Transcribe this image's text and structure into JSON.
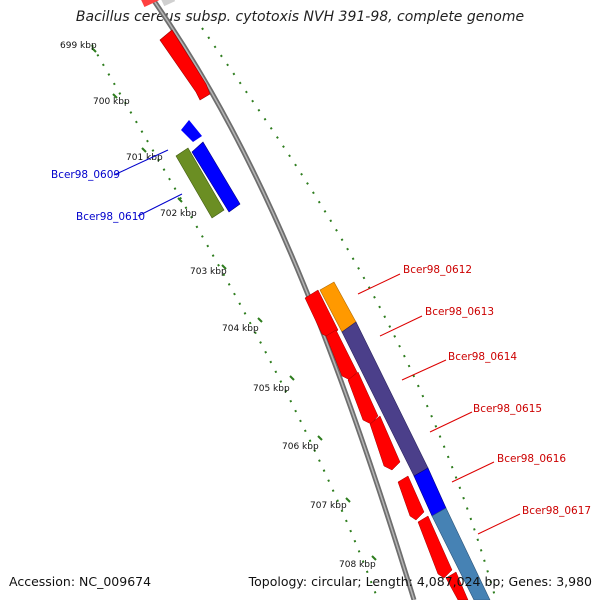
{
  "title": "Bacillus cereus subsp. cytotoxis NVH 391-98, complete genome",
  "footer": {
    "accession": "Accession: NC_009674",
    "summary": "Topology: circular; Length: 4,087,024 bp; Genes: 3,980"
  },
  "ticks": [
    "699 kbp",
    "700 kbp",
    "701 kbp",
    "702 kbp",
    "703 kbp",
    "704 kbp",
    "705 kbp",
    "706 kbp",
    "707 kbp",
    "708 kbp"
  ],
  "genes_left": [
    {
      "label": "Bcer98_0609",
      "color": "#0000cc"
    },
    {
      "label": "Bcer98_0610",
      "color": "#0000cc"
    }
  ],
  "genes_right": [
    {
      "label": "Bcer98_0612",
      "color": "#cc0000"
    },
    {
      "label": "Bcer98_0613",
      "color": "#cc0000"
    },
    {
      "label": "Bcer98_0614",
      "color": "#cc0000"
    },
    {
      "label": "Bcer98_0615",
      "color": "#cc0000"
    },
    {
      "label": "Bcer98_0616",
      "color": "#cc0000"
    },
    {
      "label": "Bcer98_0617",
      "color": "#cc0000"
    }
  ],
  "colors": {
    "cds_red": "#ff0000",
    "cds_blue": "#0000ff",
    "cds_olive": "#6b8e23",
    "cds_orange": "#ff9900",
    "cds_purple": "#4b3f8a",
    "cds_steel": "#4682b4",
    "backbone": "#808080",
    "tick_green": "#2e7d1e"
  }
}
